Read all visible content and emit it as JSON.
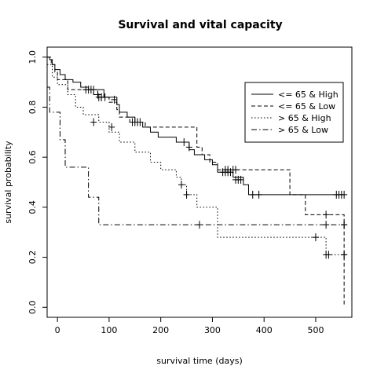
{
  "chart_data": {
    "type": "line",
    "title": "Survival and vital capacity",
    "xlabel": "survival time (days)",
    "ylabel": "survival probability",
    "xlim": [
      -20,
      570
    ],
    "ylim": [
      -0.04,
      1.04
    ],
    "xticks": [
      0,
      100,
      200,
      300,
      400,
      500
    ],
    "yticks": [
      0.0,
      0.2,
      0.4,
      0.6,
      0.8,
      1.0
    ],
    "xtick_labels": [
      "0",
      "100",
      "200",
      "300",
      "400",
      "500"
    ],
    "ytick_labels": [
      "0.0",
      "0.2",
      "0.4",
      "0.6",
      "0.8",
      "1.0"
    ],
    "legend_position": "top-right",
    "grid": false,
    "series": [
      {
        "name": "<= 65 & High",
        "line_style": "solid",
        "steps": [
          [
            -20,
            1.0
          ],
          [
            -15,
            0.99
          ],
          [
            -10,
            0.97
          ],
          [
            -5,
            0.95
          ],
          [
            5,
            0.93
          ],
          [
            15,
            0.91
          ],
          [
            30,
            0.9
          ],
          [
            45,
            0.88
          ],
          [
            60,
            0.87
          ],
          [
            90,
            0.84
          ],
          [
            115,
            0.81
          ],
          [
            120,
            0.78
          ],
          [
            135,
            0.76
          ],
          [
            150,
            0.74
          ],
          [
            165,
            0.72
          ],
          [
            180,
            0.7
          ],
          [
            195,
            0.68
          ],
          [
            230,
            0.66
          ],
          [
            255,
            0.63
          ],
          [
            265,
            0.61
          ],
          [
            285,
            0.59
          ],
          [
            300,
            0.57
          ],
          [
            310,
            0.54
          ],
          [
            340,
            0.52
          ],
          [
            360,
            0.49
          ],
          [
            370,
            0.45
          ],
          [
            555,
            0.45
          ]
        ],
        "censored": [
          [
            55,
            0.87
          ],
          [
            60,
            0.87
          ],
          [
            65,
            0.87
          ],
          [
            70,
            0.87
          ],
          [
            78,
            0.85
          ],
          [
            85,
            0.84
          ],
          [
            145,
            0.74
          ],
          [
            150,
            0.74
          ],
          [
            155,
            0.74
          ],
          [
            160,
            0.74
          ],
          [
            245,
            0.66
          ],
          [
            255,
            0.64
          ],
          [
            320,
            0.54
          ],
          [
            325,
            0.54
          ],
          [
            330,
            0.54
          ],
          [
            335,
            0.54
          ],
          [
            345,
            0.51
          ],
          [
            350,
            0.51
          ],
          [
            355,
            0.51
          ],
          [
            378,
            0.45
          ],
          [
            390,
            0.45
          ],
          [
            540,
            0.45
          ],
          [
            545,
            0.45
          ],
          [
            550,
            0.45
          ],
          [
            555,
            0.45
          ]
        ]
      },
      {
        "name": "<= 65 & Low",
        "line_style": "dashed",
        "steps": [
          [
            -20,
            1.0
          ],
          [
            -12,
            0.97
          ],
          [
            -5,
            0.94
          ],
          [
            0,
            0.91
          ],
          [
            20,
            0.87
          ],
          [
            70,
            0.85
          ],
          [
            90,
            0.84
          ],
          [
            100,
            0.82
          ],
          [
            115,
            0.79
          ],
          [
            120,
            0.76
          ],
          [
            140,
            0.74
          ],
          [
            170,
            0.72
          ],
          [
            270,
            0.64
          ],
          [
            280,
            0.61
          ],
          [
            295,
            0.58
          ],
          [
            310,
            0.55
          ],
          [
            350,
            0.55
          ],
          [
            450,
            0.45
          ],
          [
            480,
            0.37
          ],
          [
            555,
            0.37
          ],
          [
            555,
            0.01
          ]
        ],
        "censored": [
          [
            80,
            0.84
          ],
          [
            85,
            0.84
          ],
          [
            92,
            0.84
          ],
          [
            110,
            0.83
          ],
          [
            325,
            0.55
          ],
          [
            330,
            0.55
          ],
          [
            340,
            0.55
          ],
          [
            345,
            0.55
          ],
          [
            520,
            0.37
          ],
          [
            555,
            0.33
          ],
          [
            555,
            0.21
          ]
        ]
      },
      {
        "name": "> 65 & High",
        "line_style": "dotted",
        "steps": [
          [
            -20,
            0.97
          ],
          [
            -10,
            0.92
          ],
          [
            0,
            0.89
          ],
          [
            20,
            0.85
          ],
          [
            35,
            0.8
          ],
          [
            50,
            0.77
          ],
          [
            80,
            0.74
          ],
          [
            100,
            0.7
          ],
          [
            120,
            0.66
          ],
          [
            150,
            0.62
          ],
          [
            180,
            0.58
          ],
          [
            200,
            0.55
          ],
          [
            230,
            0.52
          ],
          [
            240,
            0.49
          ],
          [
            250,
            0.45
          ],
          [
            270,
            0.4
          ],
          [
            310,
            0.28
          ],
          [
            500,
            0.28
          ],
          [
            520,
            0.21
          ],
          [
            555,
            0.21
          ]
        ],
        "censored": [
          [
            70,
            0.74
          ],
          [
            105,
            0.72
          ],
          [
            240,
            0.49
          ],
          [
            250,
            0.45
          ],
          [
            500,
            0.28
          ],
          [
            520,
            0.21
          ],
          [
            525,
            0.21
          ],
          [
            555,
            0.21
          ]
        ]
      },
      {
        "name": "> 65 & Low",
        "line_style": "dotdash",
        "steps": [
          [
            -20,
            0.88
          ],
          [
            -15,
            0.78
          ],
          [
            0,
            0.78
          ],
          [
            5,
            0.67
          ],
          [
            15,
            0.56
          ],
          [
            60,
            0.44
          ],
          [
            80,
            0.33
          ],
          [
            555,
            0.33
          ]
        ],
        "censored": [
          [
            275,
            0.33
          ],
          [
            520,
            0.33
          ],
          [
            555,
            0.33
          ]
        ]
      }
    ]
  }
}
